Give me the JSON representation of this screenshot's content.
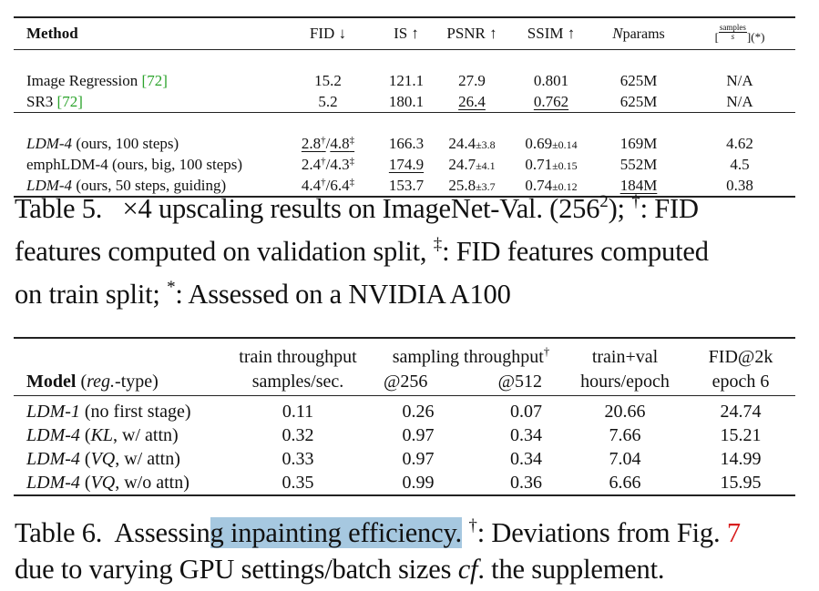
{
  "table5": {
    "headers": {
      "method": "Method",
      "fid": "FID ↓",
      "is": "IS ↑",
      "psnr": "PSNR ↑",
      "ssim": "SSIM ↑",
      "nparams_n": "N",
      "nparams_sub": "params",
      "samples_open": "[",
      "samples_num": "samples",
      "samples_den": "s",
      "samples_close": "](*)"
    },
    "rows": [
      {
        "method": "Image Regression",
        "cite": "72",
        "fid": "15.2",
        "is": "121.1",
        "psnr": "27.9",
        "ssim": "0.801",
        "nparams": "625M",
        "samples": "N/A"
      },
      {
        "method": "SR3",
        "cite": "72",
        "fid": "5.2",
        "is": "180.1",
        "psnr": "26.4",
        "ssim": "0.762",
        "nparams": "625M",
        "samples": "N/A"
      },
      {
        "method_it": "LDM-4",
        "method_rest": "(ours, 100 steps)",
        "fid_a": "2.8",
        "fid_sep": "/",
        "fid_b": "4.8",
        "is": "166.3",
        "psnr": "24.4",
        "psnr_pm": "±3.8",
        "ssim": "0.69",
        "ssim_pm": "±0.14",
        "nparams": "169M",
        "samples": "4.62"
      },
      {
        "method": "emphLDM-4 (ours, big, 100 steps)",
        "fid_a": "2.4",
        "fid_sep": "/",
        "fid_b": "4.3",
        "is": "174.9",
        "psnr": "24.7",
        "psnr_pm": "±4.1",
        "ssim": "0.71",
        "ssim_pm": "±0.15",
        "nparams": "552M",
        "samples": "4.5"
      },
      {
        "method_it": "LDM-4",
        "method_rest": "(ours, 50 steps, guiding)",
        "fid_a": "4.4",
        "fid_sep": "/",
        "fid_b": "6.4",
        "is": "153.7",
        "psnr": "25.8",
        "psnr_pm": "±3.7",
        "ssim": "0.74",
        "ssim_pm": "±0.12",
        "nparams": "184M",
        "samples": "0.38"
      }
    ],
    "dagger": "†",
    "ddagger": "‡"
  },
  "caption5": {
    "line1_a": "Table 5.",
    "line1_b": "×4 upscaling results on ImageNet-Val. (256",
    "line1_sup": "2",
    "line1_c": "); ",
    "line1_dag": "†",
    "line1_d": ": FID",
    "line2_a": "features computed on validation split, ",
    "line2_dag": "‡",
    "line2_b": ": FID features computed",
    "line3_a": "on train split; ",
    "line3_star": "*",
    "line3_b": ": Assessed on a NVIDIA A100"
  },
  "table6": {
    "headers": {
      "model_b": "Model",
      "model_it": "reg.",
      "model_rest": "-type)",
      "model_open": "(",
      "train_tp_1": "train throughput",
      "train_tp_2": "samples/sec.",
      "sampling_tp": "sampling throughput",
      "sampling_dag": "†",
      "at256": "@256",
      "at512": "@512",
      "trainval_1": "train+val",
      "trainval_2": "hours/epoch",
      "fid_1": "FID@2k",
      "fid_2": "epoch 6"
    },
    "rows": [
      {
        "model_it": "LDM-1",
        "model_rest": " (no first stage)",
        "train": "0.11",
        "s256": "0.26",
        "s512": "0.07",
        "hours": "20.66",
        "fid": "24.74"
      },
      {
        "model_it": "LDM-4",
        "model_open": " (",
        "model_it2": "KL",
        "model_rest": ", w/ attn)",
        "train": "0.32",
        "s256": "0.97",
        "s512": "0.34",
        "hours": "7.66",
        "fid": "15.21"
      },
      {
        "model_it": "LDM-4",
        "model_open": " (",
        "model_it2": "VQ",
        "model_rest": ", w/ attn)",
        "train": "0.33",
        "s256": "0.97",
        "s512": "0.34",
        "hours": "7.04",
        "fid": "14.99"
      },
      {
        "model_it": "LDM-4",
        "model_open": " (",
        "model_it2": "VQ",
        "model_rest": ", w/o attn)",
        "train": "0.35",
        "s256": "0.99",
        "s512": "0.36",
        "hours": "6.66",
        "fid": "15.95"
      }
    ]
  },
  "caption6": {
    "line1_a": "Table 6.  Assessin",
    "line1_hl": "g inpainting efficiency.",
    "line1_b": " ",
    "line1_dag": "†",
    "line1_c": ": Deviations from Fig. ",
    "line1_ref": "7",
    "line2_a": "due to varying GPU settings/batch sizes ",
    "line2_it": "cf",
    "line2_b": ". the supplement."
  }
}
